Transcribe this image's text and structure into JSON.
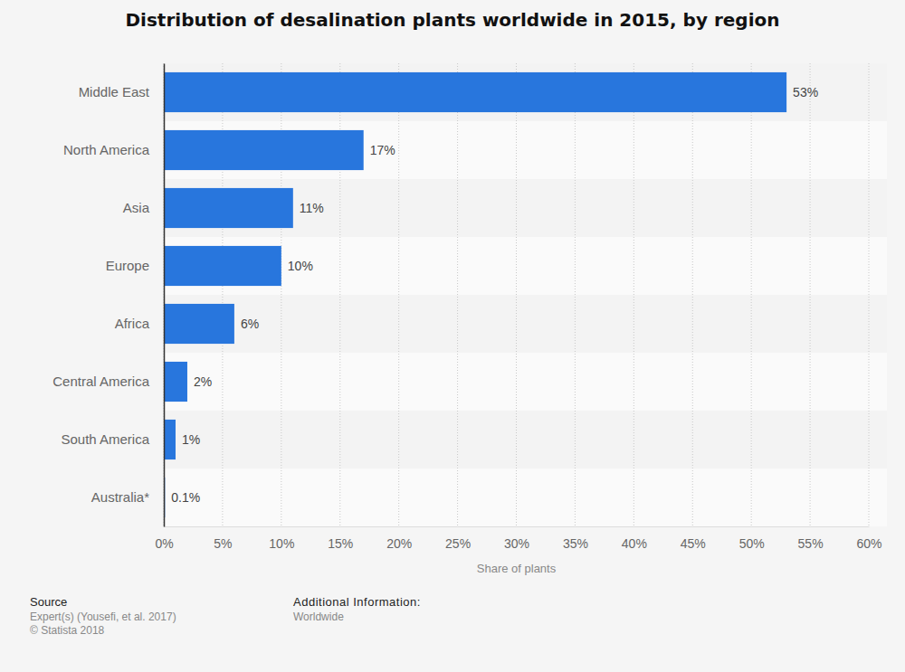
{
  "chart_data": {
    "type": "bar",
    "orientation": "horizontal",
    "title": "Distribution of desalination plants worldwide in 2015, by region",
    "x_label": "Share of plants",
    "categories": [
      "Middle East",
      "North America",
      "Asia",
      "Europe",
      "Africa",
      "Central America",
      "South America",
      "Australia*"
    ],
    "values": [
      53,
      17,
      11,
      10,
      6,
      2,
      1,
      0.1
    ],
    "value_labels": [
      "53%",
      "17%",
      "11%",
      "10%",
      "6%",
      "2%",
      "1%",
      "0.1%"
    ],
    "color": "#2876dd",
    "xlim": [
      0,
      60
    ],
    "xticks": [
      {
        "value": 0,
        "label": "0%"
      },
      {
        "value": 5,
        "label": "5%"
      },
      {
        "value": 10,
        "label": "10%"
      },
      {
        "value": 15,
        "label": "15%"
      },
      {
        "value": 20,
        "label": "20%"
      },
      {
        "value": 25,
        "label": "25%"
      },
      {
        "value": 30,
        "label": "30%"
      },
      {
        "value": 35,
        "label": "35%"
      },
      {
        "value": 40,
        "label": "40%"
      },
      {
        "value": 45,
        "label": "45%"
      },
      {
        "value": 50,
        "label": "50%"
      },
      {
        "value": 55,
        "label": "55%"
      },
      {
        "value": 60,
        "label": "60%"
      }
    ],
    "grid": true,
    "data_labels": true,
    "annotations": [
      "Source",
      "Expert(s) (Yousefi, et al. 2017)",
      "© Statista 2018",
      "Additional Information:",
      "Worldwide"
    ]
  }
}
